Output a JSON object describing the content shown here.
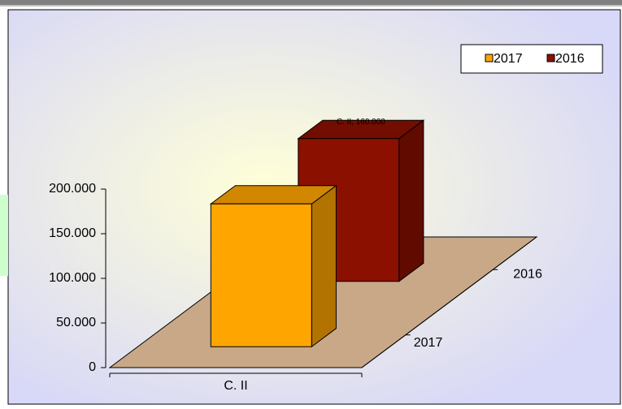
{
  "chart_data": {
    "type": "bar",
    "categories": [
      "C. II"
    ],
    "series": [
      {
        "name": "2017",
        "color": "#ffa500",
        "values": [
          160000
        ]
      },
      {
        "name": "2016",
        "color": "#8b1000",
        "values": [
          160000
        ],
        "value_labels": [
          "C. II; 160.000"
        ]
      }
    ],
    "ylim": [
      0,
      200000
    ],
    "yticks": [
      0,
      {
        "value": 50000,
        "label": "50.000"
      },
      {
        "value": 100000,
        "label": "100.000"
      },
      {
        "value": 150000,
        "label": "150.000"
      },
      {
        "value": 200000,
        "label": "200.000"
      }
    ],
    "legend": "top-right",
    "grid": false
  }
}
